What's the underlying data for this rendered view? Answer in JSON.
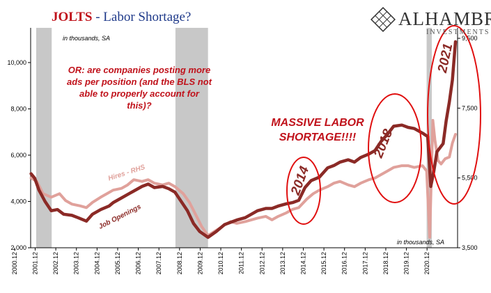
{
  "header": {
    "title_main": "JOLTS",
    "title_rest": " - Labor Shortage?"
  },
  "logo": {
    "name": "ALHAMBRA",
    "subtitle": "INVESTMENTS",
    "icon": "diamond-grid-icon"
  },
  "annotations": {
    "question": "OR: are companies posting more ads per position (and the BLS not able to properly account for this)?",
    "massive": "MASSIVE LABOR SHORTAGE!!!!",
    "units_left": "in thousands, SA",
    "units_right": "in thousands, SA",
    "circles": [
      "2014",
      "2018",
      "2021"
    ]
  },
  "colors": {
    "job_openings": "#8b2a26",
    "hires": "#e0a19b",
    "recession": "#c8c8c8",
    "circle": "#e01010",
    "title_red": "#c0121b",
    "title_blue": "#1f3a8a"
  },
  "chart_data": {
    "type": "line",
    "title": "JOLTS - Labor Shortage?",
    "x_range": [
      2000.9,
      2021.6
    ],
    "x_ticks": [
      "2000.12",
      "2001.12",
      "2002.12",
      "2003.12",
      "2004.12",
      "2005.12",
      "2006.12",
      "2007.12",
      "2008.12",
      "2009.12",
      "2010.12",
      "2011.12",
      "2012.12",
      "2013.12",
      "2014.12",
      "2015.12",
      "2016.12",
      "2017.12",
      "2018.12",
      "2019.12",
      "2020.12"
    ],
    "y_left": {
      "range": [
        2000,
        11500
      ],
      "ticks": [
        2000,
        4000,
        6000,
        8000,
        10000
      ],
      "tick_labels": [
        "2,000",
        "4,000",
        "6,000",
        "8,000",
        "10,000"
      ]
    },
    "y_right": {
      "range": [
        3500,
        9800
      ],
      "ticks": [
        3500,
        5500,
        7500,
        9500
      ],
      "tick_labels": [
        "3,500",
        "5,500",
        "7,500",
        "9,500"
      ]
    },
    "recessions": [
      [
        2001.17,
        2001.92
      ],
      [
        2007.92,
        2009.5
      ],
      [
        2020.1,
        2020.35
      ]
    ],
    "series": [
      {
        "name": "Job Openings",
        "axis": "left",
        "color": "#8b2a26",
        "points": [
          [
            2000.92,
            5200
          ],
          [
            2001.1,
            5000
          ],
          [
            2001.3,
            4500
          ],
          [
            2001.6,
            4000
          ],
          [
            2001.9,
            3600
          ],
          [
            2002.2,
            3650
          ],
          [
            2002.5,
            3450
          ],
          [
            2002.9,
            3400
          ],
          [
            2003.2,
            3300
          ],
          [
            2003.6,
            3150
          ],
          [
            2003.9,
            3450
          ],
          [
            2004.3,
            3650
          ],
          [
            2004.7,
            3800
          ],
          [
            2004.9,
            3950
          ],
          [
            2005.3,
            4150
          ],
          [
            2005.7,
            4350
          ],
          [
            2005.9,
            4450
          ],
          [
            2006.3,
            4650
          ],
          [
            2006.6,
            4750
          ],
          [
            2006.9,
            4600
          ],
          [
            2007.3,
            4650
          ],
          [
            2007.6,
            4550
          ],
          [
            2007.9,
            4400
          ],
          [
            2008.2,
            4000
          ],
          [
            2008.5,
            3600
          ],
          [
            2008.8,
            3050
          ],
          [
            2009.1,
            2700
          ],
          [
            2009.5,
            2450
          ],
          [
            2009.9,
            2700
          ],
          [
            2010.3,
            3000
          ],
          [
            2010.6,
            3100
          ],
          [
            2010.9,
            3200
          ],
          [
            2011.3,
            3300
          ],
          [
            2011.6,
            3450
          ],
          [
            2011.9,
            3600
          ],
          [
            2012.3,
            3700
          ],
          [
            2012.6,
            3700
          ],
          [
            2012.9,
            3800
          ],
          [
            2013.3,
            3900
          ],
          [
            2013.6,
            3950
          ],
          [
            2013.9,
            4050
          ],
          [
            2014.2,
            4600
          ],
          [
            2014.5,
            4900
          ],
          [
            2014.9,
            5050
          ],
          [
            2015.3,
            5450
          ],
          [
            2015.6,
            5550
          ],
          [
            2015.9,
            5700
          ],
          [
            2016.3,
            5800
          ],
          [
            2016.6,
            5700
          ],
          [
            2016.9,
            5900
          ],
          [
            2017.3,
            6050
          ],
          [
            2017.6,
            6200
          ],
          [
            2017.9,
            6600
          ],
          [
            2018.2,
            6900
          ],
          [
            2018.5,
            7250
          ],
          [
            2018.9,
            7300
          ],
          [
            2019.2,
            7200
          ],
          [
            2019.5,
            7150
          ],
          [
            2019.9,
            6950
          ],
          [
            2020.15,
            6800
          ],
          [
            2020.3,
            4650
          ],
          [
            2020.45,
            5300
          ],
          [
            2020.6,
            6150
          ],
          [
            2020.9,
            6500
          ],
          [
            2021.05,
            7500
          ],
          [
            2021.2,
            8300
          ],
          [
            2021.35,
            9250
          ],
          [
            2021.5,
            10900
          ]
        ]
      },
      {
        "name": "Hires - RHS",
        "axis": "right",
        "color": "#e0a19b",
        "points": [
          [
            2000.92,
            5500
          ],
          [
            2001.2,
            5400
          ],
          [
            2001.5,
            5050
          ],
          [
            2001.9,
            4950
          ],
          [
            2002.3,
            5050
          ],
          [
            2002.6,
            4850
          ],
          [
            2002.9,
            4750
          ],
          [
            2003.3,
            4700
          ],
          [
            2003.6,
            4650
          ],
          [
            2003.9,
            4800
          ],
          [
            2004.3,
            4950
          ],
          [
            2004.6,
            5050
          ],
          [
            2004.9,
            5150
          ],
          [
            2005.3,
            5200
          ],
          [
            2005.6,
            5300
          ],
          [
            2005.9,
            5450
          ],
          [
            2006.3,
            5400
          ],
          [
            2006.6,
            5450
          ],
          [
            2006.9,
            5350
          ],
          [
            2007.3,
            5300
          ],
          [
            2007.6,
            5350
          ],
          [
            2007.9,
            5250
          ],
          [
            2008.3,
            5050
          ],
          [
            2008.6,
            4800
          ],
          [
            2008.9,
            4450
          ],
          [
            2009.2,
            4100
          ],
          [
            2009.5,
            3850
          ],
          [
            2009.9,
            4000
          ],
          [
            2010.3,
            4150
          ],
          [
            2010.6,
            4250
          ],
          [
            2010.9,
            4200
          ],
          [
            2011.3,
            4250
          ],
          [
            2011.6,
            4300
          ],
          [
            2011.9,
            4350
          ],
          [
            2012.3,
            4400
          ],
          [
            2012.6,
            4300
          ],
          [
            2012.9,
            4400
          ],
          [
            2013.3,
            4500
          ],
          [
            2013.6,
            4600
          ],
          [
            2013.9,
            4650
          ],
          [
            2014.3,
            4900
          ],
          [
            2014.6,
            5050
          ],
          [
            2014.9,
            5150
          ],
          [
            2015.3,
            5250
          ],
          [
            2015.6,
            5350
          ],
          [
            2015.9,
            5400
          ],
          [
            2016.3,
            5300
          ],
          [
            2016.6,
            5250
          ],
          [
            2016.9,
            5350
          ],
          [
            2017.3,
            5450
          ],
          [
            2017.6,
            5500
          ],
          [
            2017.9,
            5600
          ],
          [
            2018.2,
            5700
          ],
          [
            2018.5,
            5800
          ],
          [
            2018.9,
            5850
          ],
          [
            2019.2,
            5850
          ],
          [
            2019.5,
            5800
          ],
          [
            2019.9,
            5850
          ],
          [
            2020.1,
            5700
          ],
          [
            2020.25,
            3800
          ],
          [
            2020.4,
            7150
          ],
          [
            2020.5,
            6600
          ],
          [
            2020.65,
            6000
          ],
          [
            2020.8,
            5900
          ],
          [
            2021.0,
            6050
          ],
          [
            2021.2,
            6100
          ],
          [
            2021.35,
            6500
          ],
          [
            2021.5,
            6750
          ]
        ]
      }
    ]
  }
}
